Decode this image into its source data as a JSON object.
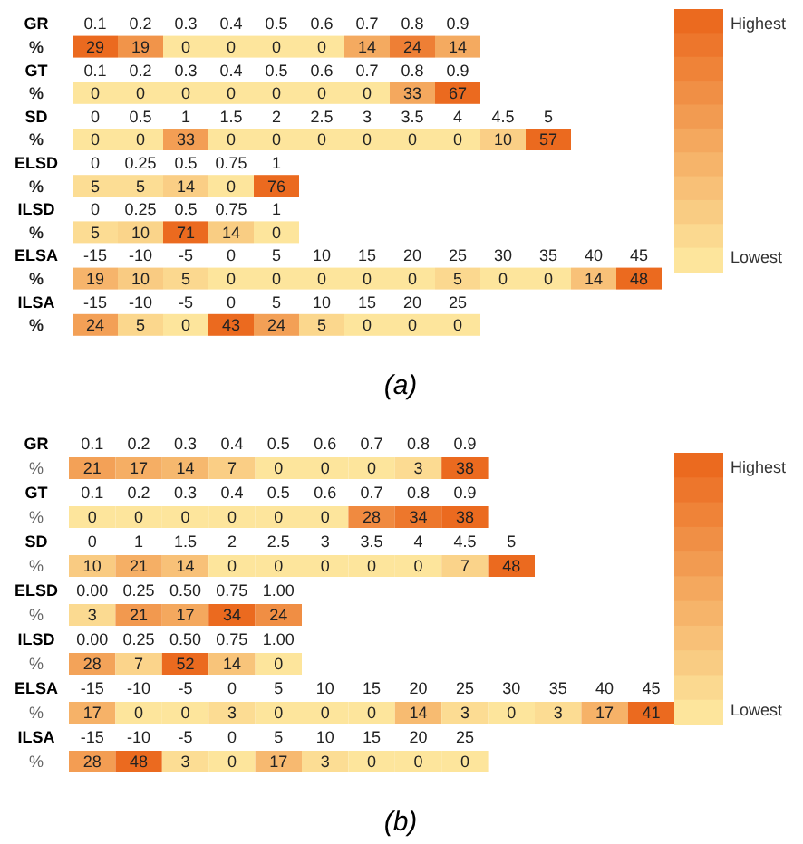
{
  "chart_data": [
    {
      "type": "heatmap",
      "xlabel": "GR",
      "categories": [
        "0.1",
        "0.2",
        "0.3",
        "0.4",
        "0.5",
        "0.6",
        "0.7",
        "0.8",
        "0.9"
      ],
      "y_categories": [
        "%"
      ],
      "cells": [
        [
          29,
          19,
          0,
          0,
          0,
          0,
          14,
          24,
          14
        ]
      ],
      "data_labels": true
    },
    {
      "type": "heatmap",
      "xlabel": "GT",
      "categories": [
        "0.1",
        "0.2",
        "0.3",
        "0.4",
        "0.5",
        "0.6",
        "0.7",
        "0.8",
        "0.9"
      ],
      "y_categories": [
        "%"
      ],
      "cells": [
        [
          0,
          0,
          0,
          0,
          0,
          0,
          0,
          33,
          67
        ]
      ],
      "data_labels": true
    },
    {
      "type": "heatmap",
      "xlabel": "SD",
      "categories": [
        "0",
        "0.5",
        "1",
        "1.5",
        "2",
        "2.5",
        "3",
        "3.5",
        "4",
        "4.5",
        "5"
      ],
      "y_categories": [
        "%"
      ],
      "cells": [
        [
          0,
          0,
          33,
          0,
          0,
          0,
          0,
          0,
          0,
          10,
          57
        ]
      ],
      "data_labels": true
    },
    {
      "type": "heatmap",
      "xlabel": "ELSD",
      "categories": [
        "0",
        "0.25",
        "0.5",
        "0.75",
        "1"
      ],
      "y_categories": [
        "%"
      ],
      "cells": [
        [
          5,
          5,
          14,
          0,
          76
        ]
      ],
      "data_labels": true
    },
    {
      "type": "heatmap",
      "xlabel": "ILSD",
      "categories": [
        "0",
        "0.25",
        "0.5",
        "0.75",
        "1"
      ],
      "y_categories": [
        "%"
      ],
      "cells": [
        [
          5,
          10,
          71,
          14,
          0
        ]
      ],
      "data_labels": true
    },
    {
      "type": "heatmap",
      "xlabel": "ELSA",
      "categories": [
        "-15",
        "-10",
        "-5",
        "0",
        "5",
        "10",
        "15",
        "20",
        "25",
        "30",
        "35",
        "40",
        "45"
      ],
      "y_categories": [
        "%"
      ],
      "cells": [
        [
          19,
          10,
          5,
          0,
          0,
          0,
          0,
          0,
          5,
          0,
          0,
          14,
          48
        ]
      ],
      "data_labels": true
    },
    {
      "type": "heatmap",
      "xlabel": "ILSA",
      "categories": [
        "-15",
        "-10",
        "-5",
        "0",
        "5",
        "10",
        "15",
        "20",
        "25"
      ],
      "y_categories": [
        "%"
      ],
      "cells": [
        [
          24,
          5,
          0,
          43,
          24,
          5,
          0,
          0,
          0
        ]
      ],
      "data_labels": true
    },
    {
      "type": "other",
      "title": "(a)",
      "annotations": [
        "Highest",
        "Lowest"
      ]
    },
    {
      "type": "heatmap",
      "xlabel": "GR",
      "categories": [
        "0.1",
        "0.2",
        "0.3",
        "0.4",
        "0.5",
        "0.6",
        "0.7",
        "0.8",
        "0.9"
      ],
      "y_categories": [
        "%"
      ],
      "cells": [
        [
          21,
          17,
          14,
          7,
          0,
          0,
          0,
          3,
          38
        ]
      ],
      "data_labels": true
    },
    {
      "type": "heatmap",
      "xlabel": "GT",
      "categories": [
        "0.1",
        "0.2",
        "0.3",
        "0.4",
        "0.5",
        "0.6",
        "0.7",
        "0.8",
        "0.9"
      ],
      "y_categories": [
        "%"
      ],
      "cells": [
        [
          0,
          0,
          0,
          0,
          0,
          0,
          28,
          34,
          38
        ]
      ],
      "data_labels": true
    },
    {
      "type": "heatmap",
      "xlabel": "SD",
      "categories": [
        "0",
        "1",
        "1.5",
        "2",
        "2.5",
        "3",
        "3.5",
        "4",
        "4.5",
        "5"
      ],
      "y_categories": [
        "%"
      ],
      "cells": [
        [
          10,
          21,
          14,
          0,
          0,
          0,
          0,
          0,
          7,
          48
        ]
      ],
      "data_labels": true
    },
    {
      "type": "heatmap",
      "xlabel": "ELSD",
      "categories": [
        "0.00",
        "0.25",
        "0.50",
        "0.75",
        "1.00"
      ],
      "y_categories": [
        "%"
      ],
      "cells": [
        [
          3,
          21,
          17,
          34,
          24
        ]
      ],
      "data_labels": true
    },
    {
      "type": "heatmap",
      "xlabel": "ILSD",
      "categories": [
        "0.00",
        "0.25",
        "0.50",
        "0.75",
        "1.00"
      ],
      "y_categories": [
        "%"
      ],
      "cells": [
        [
          28,
          7,
          52,
          14,
          0
        ]
      ],
      "data_labels": true
    },
    {
      "type": "heatmap",
      "xlabel": "ELSA",
      "categories": [
        "-15",
        "-10",
        "-5",
        "0",
        "5",
        "10",
        "15",
        "20",
        "25",
        "30",
        "35",
        "40",
        "45"
      ],
      "y_categories": [
        "%"
      ],
      "cells": [
        [
          17,
          0,
          0,
          3,
          0,
          0,
          0,
          14,
          3,
          0,
          3,
          17,
          41
        ]
      ],
      "data_labels": true
    },
    {
      "type": "heatmap",
      "xlabel": "ILSA",
      "categories": [
        "-15",
        "-10",
        "-5",
        "0",
        "5",
        "10",
        "15",
        "20",
        "25"
      ],
      "y_categories": [
        "%"
      ],
      "cells": [
        [
          28,
          48,
          3,
          0,
          17,
          3,
          0,
          0,
          0
        ]
      ],
      "data_labels": true
    },
    {
      "type": "other",
      "title": "(b)",
      "annotations": [
        "Highest",
        "Lowest"
      ]
    }
  ]
}
